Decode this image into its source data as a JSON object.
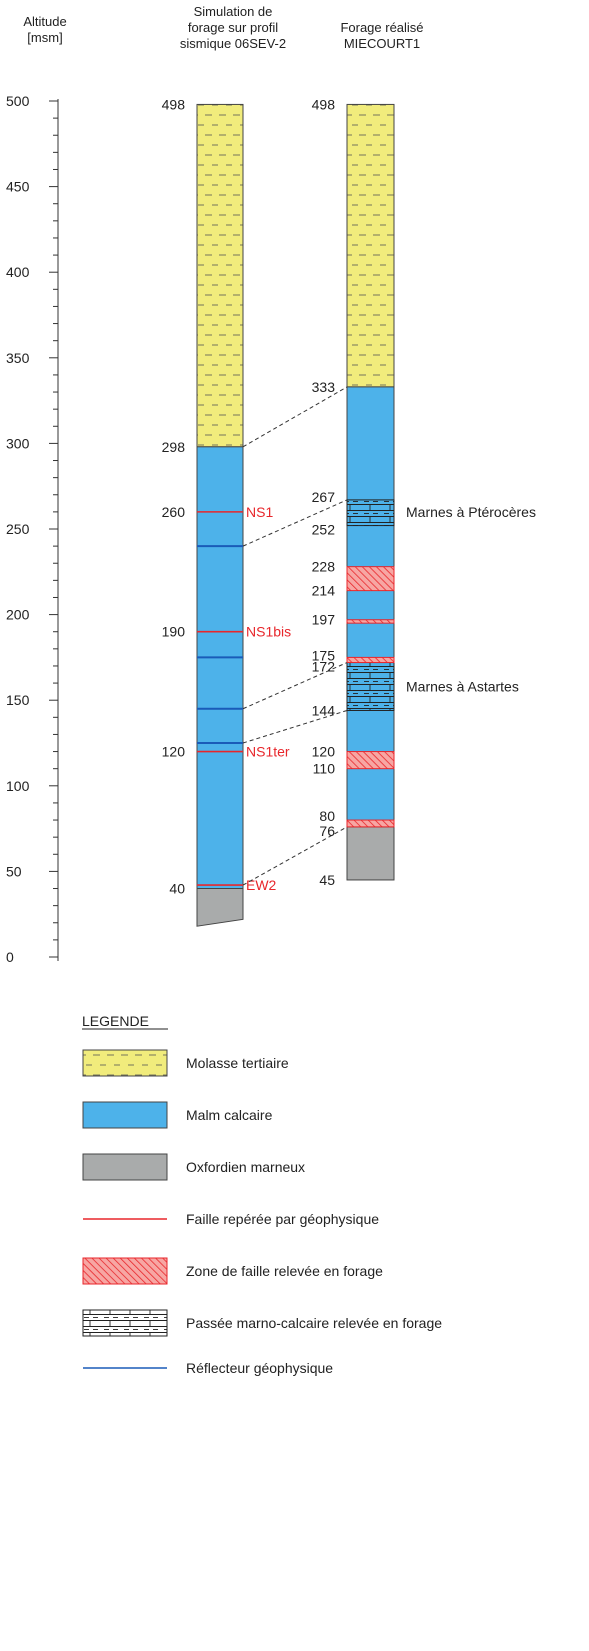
{
  "header": {
    "axis": [
      "Altitude",
      "[msm]"
    ],
    "sim": [
      "Simulation de",
      "forage sur profil",
      "sismique 06SEV-2"
    ],
    "real": [
      "Forage réalisé",
      "MIECOURT1"
    ]
  },
  "axis": {
    "ticks": [
      "500",
      "450",
      "400",
      "350",
      "300",
      "250",
      "200",
      "150",
      "100",
      "50",
      "0"
    ],
    "tick_values": [
      500,
      450,
      400,
      350,
      300,
      250,
      200,
      150,
      100,
      50,
      0
    ]
  },
  "colors": {
    "molasse": "#f1ec7c",
    "malm": "#4db2ea",
    "oxfordien": "#a9abab",
    "fault": "#e8262b",
    "reflector": "#1a5bb8"
  },
  "left_column": {
    "top": 498,
    "bottom_left": 18,
    "bottom_right": 22,
    "molasse": [
      298,
      498
    ],
    "malm": [
      40,
      298
    ],
    "oxfordien": [
      18,
      40
    ],
    "labels": [
      {
        "id": "498",
        "value": 498,
        "text": "498"
      },
      {
        "id": "298",
        "value": 298,
        "text": "298"
      },
      {
        "id": "260",
        "value": 260,
        "text": "260"
      },
      {
        "id": "190",
        "value": 190,
        "text": "190"
      },
      {
        "id": "120",
        "value": 120,
        "text": "120"
      },
      {
        "id": "40",
        "value": 40,
        "text": "40"
      }
    ],
    "faults": [
      {
        "id": "ns1",
        "value": 260,
        "text": "NS1"
      },
      {
        "id": "ns1bis",
        "value": 190,
        "text": "NS1bis"
      },
      {
        "id": "ns1ter",
        "value": 120,
        "text": "NS1ter"
      },
      {
        "id": "ew2",
        "value": 42,
        "text": "EW2"
      }
    ],
    "reflectors": [
      240,
      175,
      145,
      125
    ]
  },
  "right_column": {
    "molasse": [
      333,
      498
    ],
    "malm": [
      76,
      333
    ],
    "oxfordien": [
      45,
      76
    ],
    "marl_zones": [
      [
        252,
        267
      ],
      [
        144,
        172
      ]
    ],
    "fault_zones": [
      [
        214,
        228
      ],
      [
        195,
        197
      ],
      [
        172,
        175
      ],
      [
        110,
        120
      ],
      [
        76,
        80
      ]
    ],
    "labels": [
      {
        "id": "498",
        "value": 498,
        "text": "498"
      },
      {
        "id": "333",
        "value": 333,
        "text": "333"
      },
      {
        "id": "267",
        "value": 267,
        "text": "267"
      },
      {
        "id": "252",
        "value": 252,
        "text": "252"
      },
      {
        "id": "228",
        "value": 228,
        "text": "228"
      },
      {
        "id": "214",
        "value": 214,
        "text": "214"
      },
      {
        "id": "197",
        "value": 197,
        "text": "197"
      },
      {
        "id": "175",
        "value": 175,
        "text": "175"
      },
      {
        "id": "172",
        "value": 172,
        "text": "172"
      },
      {
        "id": "144",
        "value": 144,
        "text": "144"
      },
      {
        "id": "120",
        "value": 120,
        "text": "120"
      },
      {
        "id": "110",
        "value": 110,
        "text": "110"
      },
      {
        "id": "80",
        "value": 80,
        "text": "80"
      },
      {
        "id": "76",
        "value": 76,
        "text": "76"
      },
      {
        "id": "45",
        "value": 45,
        "text": "45"
      }
    ],
    "annotations": [
      {
        "id": "pterocere",
        "value": 260,
        "text": "Marnes à Ptérocères"
      },
      {
        "id": "astartes",
        "value": 158,
        "text": "Marnes à Astartes"
      }
    ]
  },
  "correlations": [
    {
      "from": 298,
      "to": 333
    },
    {
      "from": 240,
      "to": 267
    },
    {
      "from": 145,
      "to": 172
    },
    {
      "from": 125,
      "to": 144
    },
    {
      "from": 42,
      "to": 76
    }
  ],
  "legend": {
    "title": "LEGENDE",
    "items": [
      {
        "id": "molasse",
        "label": "Molasse tertiaire"
      },
      {
        "id": "malm",
        "label": "Malm calcaire"
      },
      {
        "id": "oxfordien",
        "label": "Oxfordien marneux"
      },
      {
        "id": "fault-line",
        "label": "Faille repérée par géophysique"
      },
      {
        "id": "fault-zone",
        "label": "Zone de faille relevée en forage"
      },
      {
        "id": "marl",
        "label": "Passée marno-calcaire relevée en forage"
      },
      {
        "id": "reflector",
        "label": "Réflecteur géophysique"
      }
    ]
  }
}
